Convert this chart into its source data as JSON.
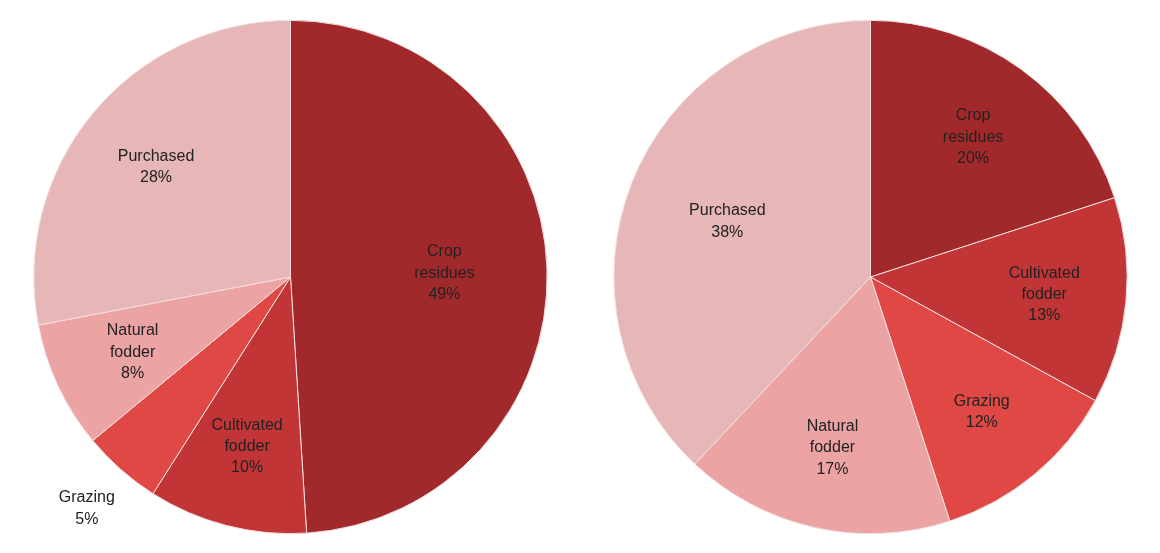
{
  "chart_data": [
    {
      "type": "pie",
      "categories": [
        "Crop residues",
        "Cultivated fodder",
        "Grazing",
        "Natural fodder",
        "Purchased"
      ],
      "values": [
        49,
        10,
        5,
        8,
        28
      ],
      "value_labels": [
        "49%",
        "10%",
        "5%",
        "8%",
        "28%"
      ],
      "colors": [
        "#a2292b",
        "#c23537",
        "#e04846",
        "#eba3a3",
        "#e7b7b7"
      ]
    },
    {
      "type": "pie",
      "categories": [
        "Crop residues",
        "Cultivated fodder",
        "Grazing",
        "Natural fodder",
        "Purchased"
      ],
      "values": [
        20,
        13,
        12,
        17,
        38
      ],
      "value_labels": [
        "20%",
        "13%",
        "12%",
        "17%",
        "38%"
      ],
      "colors": [
        "#a2292b",
        "#c23537",
        "#e04846",
        "#eba3a3",
        "#e7b7b7"
      ]
    }
  ]
}
